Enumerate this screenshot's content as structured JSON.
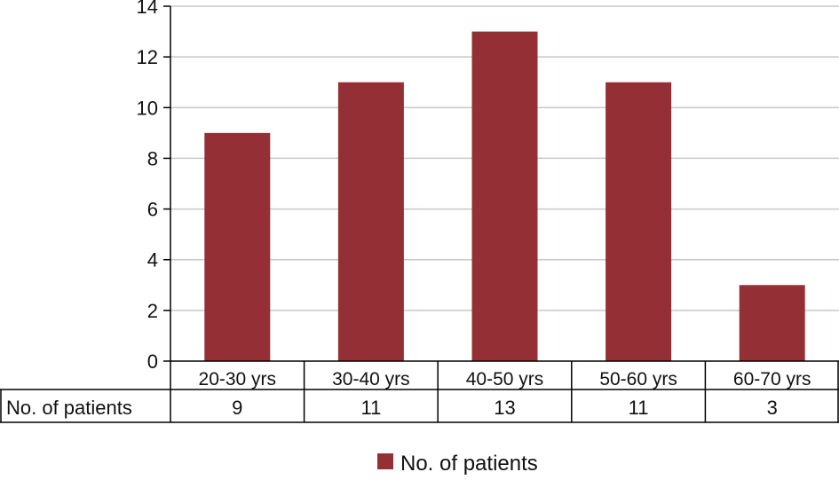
{
  "chart_data": {
    "type": "bar",
    "categories": [
      "20-30 yrs",
      "30-40 yrs",
      "40-50 yrs",
      "50-60 yrs",
      "60-70 yrs"
    ],
    "series": [
      {
        "name": "No. of patients",
        "values": [
          9,
          11,
          13,
          11,
          3
        ]
      }
    ],
    "ylim": [
      0,
      14
    ],
    "yticks": [
      0,
      2,
      4,
      6,
      8,
      10,
      12,
      14
    ],
    "grid": true,
    "legend": "bottom",
    "data_table": {
      "row_header": "No. of patients",
      "cells": [
        "9",
        "11",
        "13",
        "11",
        "3"
      ]
    },
    "colors": {
      "bar": "#943035",
      "grid": "#c8c8c8",
      "axis": "#000000"
    }
  }
}
